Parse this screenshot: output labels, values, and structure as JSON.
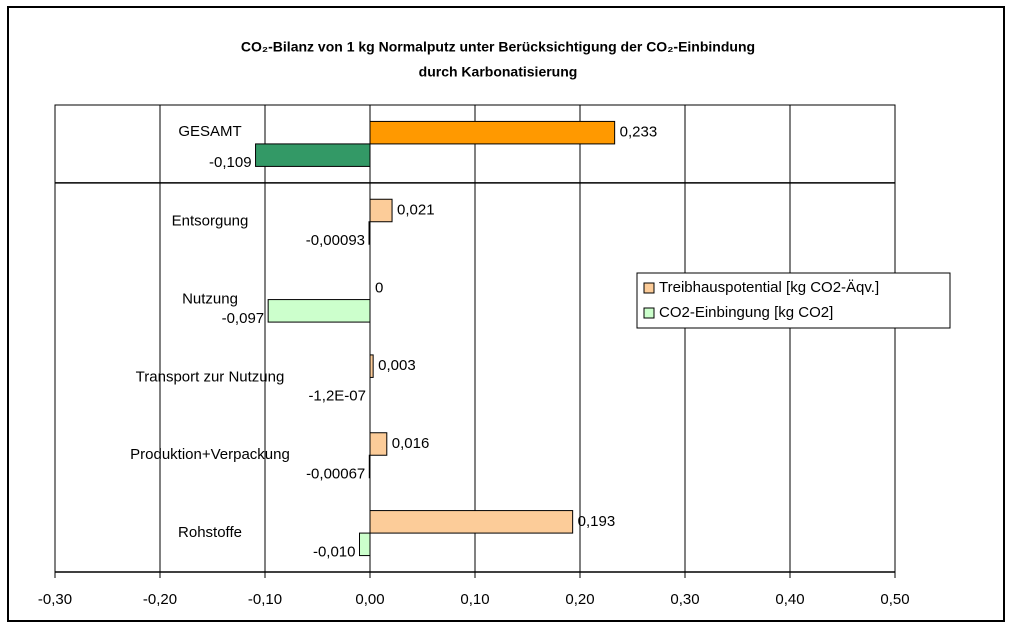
{
  "chart_data": {
    "type": "barh",
    "title": [
      "CO₂-Bilanz von 1 kg Normalputz unter Berücksichtigung der CO₂-Einbindung",
      "durch Karbonatisierung"
    ],
    "categories": [
      "GESAMT",
      "Entsorgung",
      "Nutzung",
      "Transport zur Nutzung",
      "Produktion+Verpackung",
      "Rohstoffe"
    ],
    "series": [
      {
        "name": "Treibhauspotential [kg CO2-Äqv.]",
        "color": "#fccc99",
        "colors": [
          "#ff9900",
          "#fccc99",
          "#fccc99",
          "#fccc99",
          "#fccc99",
          "#fccc99"
        ],
        "values": [
          0.233,
          0.021,
          0,
          0.003,
          0.016,
          0.193
        ],
        "value_labels": [
          "0,233",
          "0,021",
          "0",
          "0,003",
          "0,016",
          "0,193"
        ]
      },
      {
        "name": "CO2-Einbingung [kg CO2]",
        "color": "#ccffcc",
        "colors": [
          "#339966",
          "#ccffcc",
          "#ccffcc",
          "#ccffcc",
          "#ccffcc",
          "#ccffcc"
        ],
        "values": [
          -0.109,
          -0.00093,
          -0.097,
          -1.2e-07,
          -0.00067,
          -0.01
        ],
        "value_labels": [
          "-0,109",
          "-0,00093",
          "-0,097",
          "-1,2E-07",
          "-0,00067",
          "-0,010"
        ]
      }
    ],
    "xlim": [
      -0.3,
      0.5
    ],
    "xticks": [
      {
        "value": -0.3,
        "label": "-0,30"
      },
      {
        "value": -0.2,
        "label": "-0,20"
      },
      {
        "value": -0.1,
        "label": "-0,10"
      },
      {
        "value": 0,
        "label": "0,00"
      },
      {
        "value": 0.1,
        "label": "0,10"
      },
      {
        "value": 0.2,
        "label": "0,20"
      },
      {
        "value": 0.3,
        "label": "0,30"
      },
      {
        "value": 0.4,
        "label": "0,40"
      },
      {
        "value": 0.5,
        "label": "0,50"
      }
    ],
    "grid": true,
    "legend": "right"
  }
}
